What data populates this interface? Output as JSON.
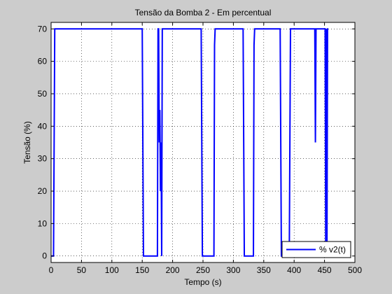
{
  "chart_data": {
    "type": "line",
    "title": "Tensão da Bomba 2 - Em percentual",
    "xlabel": "Tempo (s)",
    "ylabel": "Tensão (%)",
    "xlim": [
      0,
      500
    ],
    "ylim": [
      -2,
      72
    ],
    "xticks": [
      0,
      50,
      100,
      150,
      200,
      250,
      300,
      350,
      400,
      450,
      500
    ],
    "yticks": [
      0,
      10,
      20,
      30,
      40,
      50,
      60,
      70
    ],
    "grid": true,
    "legend": "bottom-right",
    "colors": {
      "series": "#0000ff",
      "figure_bg": "#cccccc",
      "axes_bg": "#ffffff"
    },
    "series": [
      {
        "name": "% v2(t)",
        "x": [
          0,
          4,
          6,
          150,
          151,
          152,
          175,
          176,
          177,
          178,
          179,
          180,
          181,
          182,
          183,
          184,
          185,
          247,
          248,
          249,
          268,
          269,
          270,
          316,
          317,
          318,
          333,
          334,
          335,
          377,
          378,
          379,
          392,
          393,
          394,
          434,
          435,
          436,
          451,
          452,
          453,
          454,
          455,
          456
        ],
        "values": [
          0,
          0,
          70,
          70,
          35,
          0,
          0,
          70,
          70,
          35,
          45,
          20,
          35,
          0,
          70,
          70,
          70,
          70,
          35,
          0,
          0,
          65,
          70,
          70,
          35,
          0,
          0,
          65,
          70,
          70,
          35,
          0,
          0,
          35,
          70,
          70,
          35,
          70,
          70,
          0,
          70,
          0,
          70,
          70
        ]
      }
    ]
  }
}
